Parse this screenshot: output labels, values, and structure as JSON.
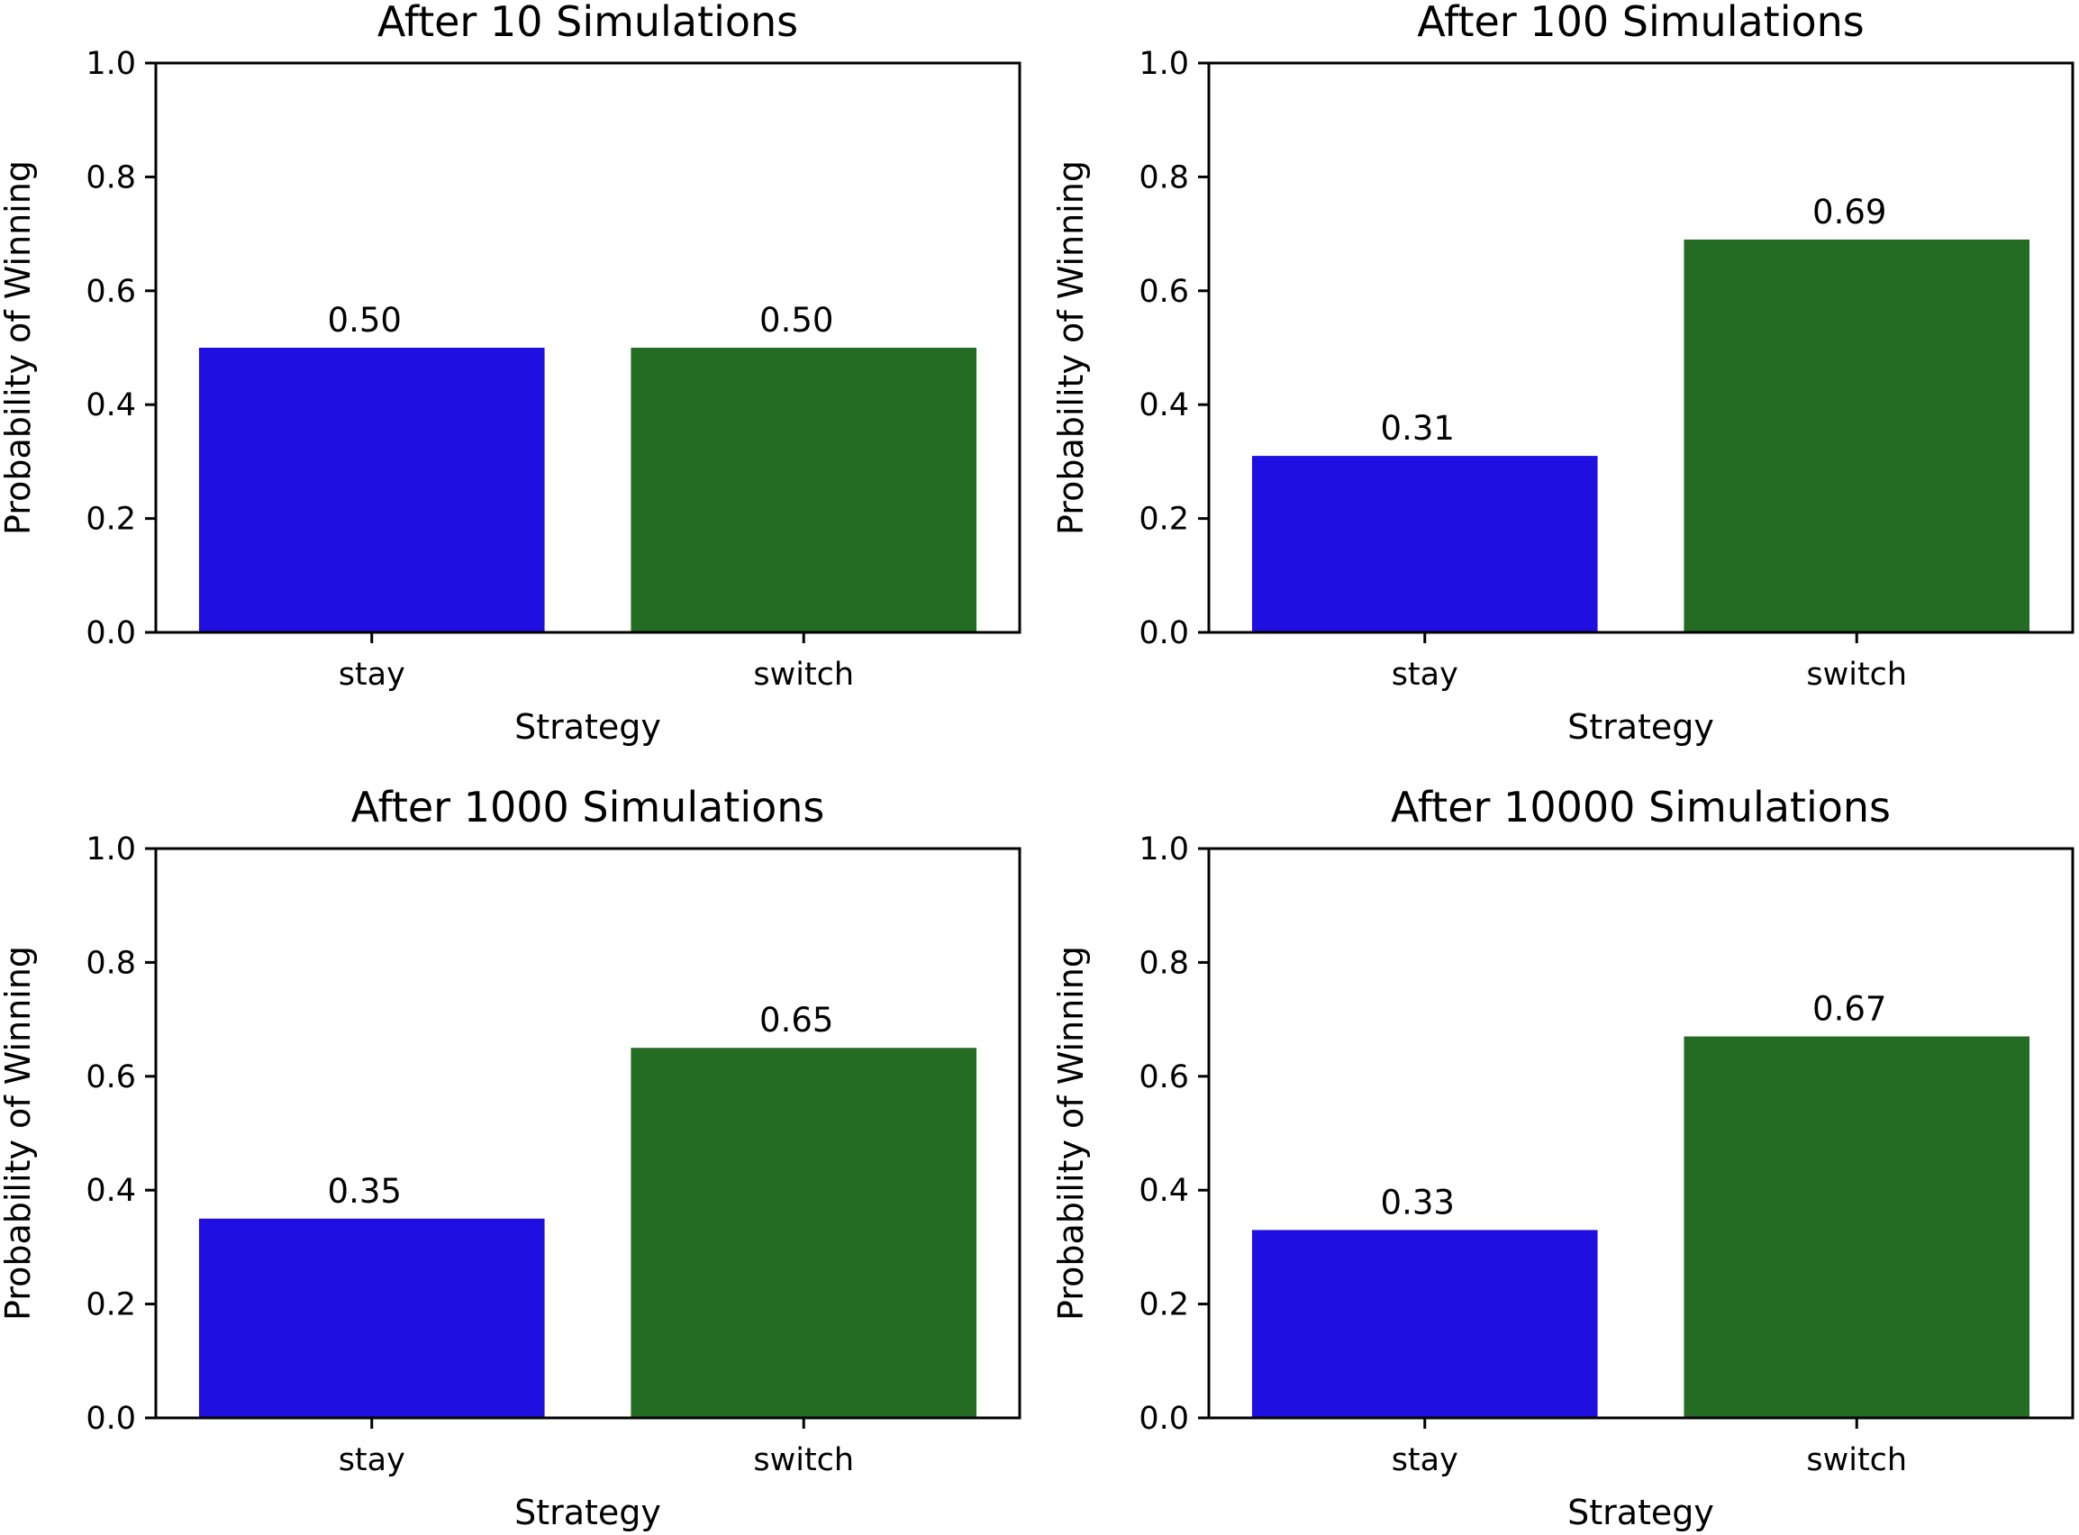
{
  "chart_data": [
    {
      "type": "bar",
      "title": "After 10 Simulations",
      "xlabel": "Strategy",
      "ylabel": "Probability of Winning",
      "categories": [
        "stay",
        "switch"
      ],
      "values": [
        0.5,
        0.5
      ],
      "value_labels": [
        "0.50",
        "0.50"
      ],
      "colors": [
        "#1f0fe0",
        "#246b24"
      ],
      "ylim": [
        0,
        1.0
      ],
      "yticks": [
        "0.0",
        "0.2",
        "0.4",
        "0.6",
        "0.8",
        "1.0"
      ],
      "grid": false
    },
    {
      "type": "bar",
      "title": "After 100 Simulations",
      "xlabel": "Strategy",
      "ylabel": "Probability of Winning",
      "categories": [
        "stay",
        "switch"
      ],
      "values": [
        0.31,
        0.69
      ],
      "value_labels": [
        "0.31",
        "0.69"
      ],
      "colors": [
        "#1f0fe0",
        "#246b24"
      ],
      "ylim": [
        0,
        1.0
      ],
      "yticks": [
        "0.0",
        "0.2",
        "0.4",
        "0.6",
        "0.8",
        "1.0"
      ],
      "grid": false
    },
    {
      "type": "bar",
      "title": "After 1000 Simulations",
      "xlabel": "Strategy",
      "ylabel": "Probability of Winning",
      "categories": [
        "stay",
        "switch"
      ],
      "values": [
        0.35,
        0.65
      ],
      "value_labels": [
        "0.35",
        "0.65"
      ],
      "colors": [
        "#1f0fe0",
        "#246b24"
      ],
      "ylim": [
        0,
        1.0
      ],
      "yticks": [
        "0.0",
        "0.2",
        "0.4",
        "0.6",
        "0.8",
        "1.0"
      ],
      "grid": false
    },
    {
      "type": "bar",
      "title": "After 10000 Simulations",
      "xlabel": "Strategy",
      "ylabel": "Probability of Winning",
      "categories": [
        "stay",
        "switch"
      ],
      "values": [
        0.33,
        0.67
      ],
      "value_labels": [
        "0.33",
        "0.67"
      ],
      "colors": [
        "#1f0fe0",
        "#246b24"
      ],
      "ylim": [
        0,
        1.0
      ],
      "yticks": [
        "0.0",
        "0.2",
        "0.4",
        "0.6",
        "0.8",
        "1.0"
      ],
      "grid": false
    }
  ]
}
